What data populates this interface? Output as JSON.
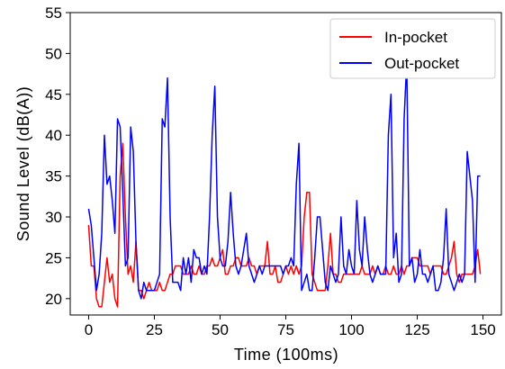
{
  "chart_data": {
    "type": "line",
    "xlabel": "Time (100ms)",
    "ylabel": "Sound Level (dB(A))",
    "xlim": [
      -7,
      157
    ],
    "ylim": [
      18,
      55
    ],
    "xticks": [
      0,
      25,
      50,
      75,
      100,
      125,
      150
    ],
    "yticks": [
      20,
      25,
      30,
      35,
      40,
      45,
      50,
      55
    ],
    "grid": false,
    "legend_position": "top-right",
    "series": [
      {
        "name": "In-pocket",
        "color": "#ff0000",
        "x": [
          0,
          1,
          2,
          3,
          4,
          5,
          6,
          7,
          8,
          9,
          10,
          11,
          12,
          13,
          14,
          15,
          16,
          17,
          18,
          19,
          20,
          21,
          22,
          23,
          24,
          25,
          26,
          27,
          28,
          29,
          30,
          31,
          32,
          33,
          34,
          35,
          36,
          37,
          38,
          39,
          40,
          41,
          42,
          43,
          44,
          45,
          46,
          47,
          48,
          49,
          50,
          51,
          52,
          53,
          54,
          55,
          56,
          57,
          58,
          59,
          60,
          61,
          62,
          63,
          64,
          65,
          66,
          67,
          68,
          69,
          70,
          71,
          72,
          73,
          74,
          75,
          76,
          77,
          78,
          79,
          80,
          81,
          82,
          83,
          84,
          85,
          86,
          87,
          88,
          89,
          90,
          91,
          92,
          93,
          94,
          95,
          96,
          97,
          98,
          99,
          100,
          101,
          102,
          103,
          104,
          105,
          106,
          107,
          108,
          109,
          110,
          111,
          112,
          113,
          114,
          115,
          116,
          117,
          118,
          119,
          120,
          121,
          122,
          123,
          124,
          125,
          126,
          127,
          128,
          129,
          130,
          131,
          132,
          133,
          134,
          135,
          136,
          137,
          138,
          139,
          140,
          141,
          142,
          143,
          144,
          145,
          146,
          147,
          148,
          149
        ],
        "y": [
          29,
          24,
          24,
          20,
          19,
          19,
          22,
          25,
          22,
          23,
          20,
          19,
          35,
          39,
          30,
          23,
          24,
          22,
          27,
          21,
          21,
          20,
          21,
          22,
          21,
          21,
          21,
          22,
          21,
          21,
          22,
          23,
          23,
          24,
          24,
          24,
          23,
          23,
          23,
          24,
          23,
          23,
          24,
          23,
          23,
          24,
          24,
          25,
          24,
          24,
          25,
          26,
          23,
          23,
          24,
          24,
          25,
          25,
          24,
          24,
          24,
          25,
          24,
          24,
          23,
          24,
          24,
          24,
          27,
          23,
          23,
          24,
          22,
          22,
          23,
          24,
          23,
          24,
          23,
          24,
          23,
          24,
          30,
          33,
          33,
          23,
          22,
          21,
          21,
          21,
          21,
          24,
          28,
          23,
          23,
          22,
          22,
          23,
          23,
          23,
          23,
          23,
          23,
          23,
          24,
          23,
          23,
          23,
          24,
          23,
          24,
          23,
          23,
          24,
          23,
          23,
          24,
          23,
          23,
          24,
          23,
          24,
          24,
          25,
          25,
          25,
          24,
          24,
          24,
          24,
          23,
          24,
          24,
          24,
          24,
          23,
          23,
          24,
          25,
          27,
          23,
          22,
          23,
          23,
          23,
          23,
          23,
          24,
          26,
          23
        ]
      },
      {
        "name": "Out-pocket",
        "color": "#0000ff",
        "x": [
          0,
          1,
          2,
          3,
          4,
          5,
          6,
          7,
          8,
          9,
          10,
          11,
          12,
          13,
          14,
          15,
          16,
          17,
          18,
          19,
          20,
          21,
          22,
          23,
          24,
          25,
          26,
          27,
          28,
          29,
          30,
          31,
          32,
          33,
          34,
          35,
          36,
          37,
          38,
          39,
          40,
          41,
          42,
          43,
          44,
          45,
          46,
          47,
          48,
          49,
          50,
          51,
          52,
          53,
          54,
          55,
          56,
          57,
          58,
          59,
          60,
          61,
          62,
          63,
          64,
          65,
          66,
          67,
          68,
          69,
          70,
          71,
          72,
          73,
          74,
          75,
          76,
          77,
          78,
          79,
          80,
          81,
          82,
          83,
          84,
          85,
          86,
          87,
          88,
          89,
          90,
          91,
          92,
          93,
          94,
          95,
          96,
          97,
          98,
          99,
          100,
          101,
          102,
          103,
          104,
          105,
          106,
          107,
          108,
          109,
          110,
          111,
          112,
          113,
          114,
          115,
          116,
          117,
          118,
          119,
          120,
          121,
          122,
          123,
          124,
          125,
          126,
          127,
          128,
          129,
          130,
          131,
          132,
          133,
          134,
          135,
          136,
          137,
          138,
          139,
          140,
          141,
          142,
          143,
          144,
          145,
          146,
          147,
          148,
          149
        ],
        "y": [
          31,
          29,
          25,
          21,
          23,
          28,
          40,
          34,
          35,
          32,
          28,
          42,
          41,
          33,
          24,
          25,
          41,
          38,
          27,
          21,
          20,
          22,
          21,
          21,
          21,
          21,
          22,
          23,
          42,
          41,
          47,
          30,
          22,
          22,
          22,
          21,
          25,
          23,
          25,
          22,
          26,
          25,
          25,
          23,
          24,
          23,
          30,
          40,
          46,
          30,
          25,
          24,
          24,
          27,
          33,
          28,
          24,
          23,
          24,
          26,
          28,
          24,
          23,
          22,
          23,
          24,
          23,
          24,
          24,
          24,
          24,
          24,
          24,
          24,
          23,
          24,
          24,
          25,
          24,
          34,
          39,
          21,
          22,
          23,
          21,
          21,
          25,
          30,
          30,
          26,
          22,
          21,
          24,
          23,
          22,
          23,
          30,
          24,
          23,
          26,
          24,
          23,
          32,
          26,
          24,
          30,
          26,
          23,
          22,
          23,
          24,
          23,
          23,
          23,
          40,
          45,
          25,
          28,
          22,
          23,
          42,
          49,
          24,
          25,
          22,
          23,
          26,
          23,
          23,
          22,
          23,
          24,
          21,
          21,
          22,
          25,
          31,
          23,
          22,
          21,
          22,
          23,
          22,
          23,
          38,
          35,
          32,
          22,
          35,
          35
        ]
      }
    ]
  }
}
